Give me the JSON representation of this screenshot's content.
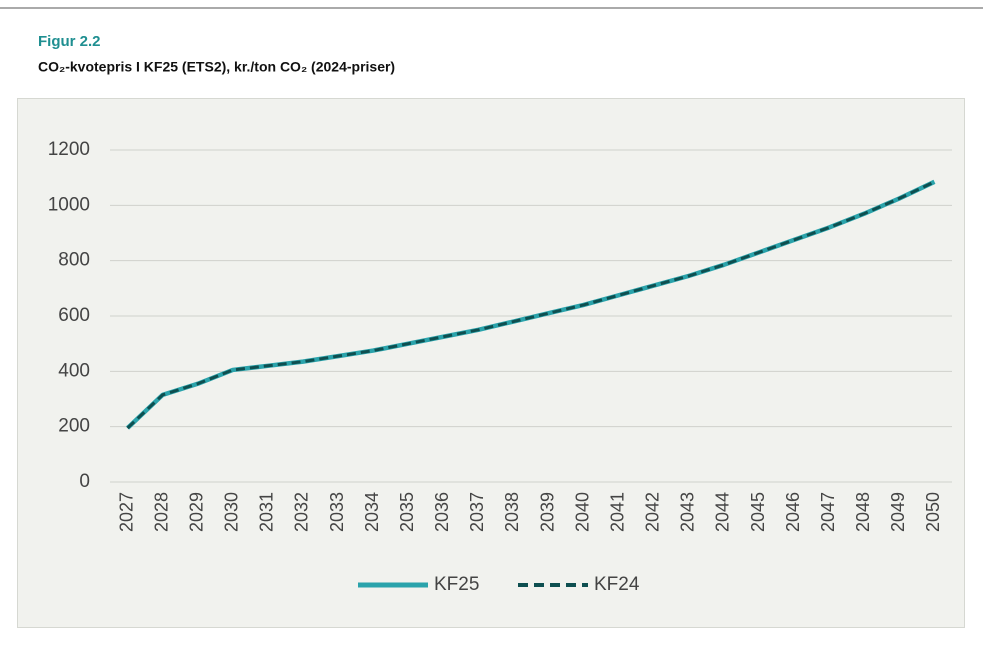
{
  "chart_data": {
    "type": "line",
    "title": "Figur 2.2",
    "subtitle": "CO₂-kvotepris I KF25 (ETS2), kr./ton CO₂ (2024-priser)",
    "categories": [
      "2027",
      "2028",
      "2029",
      "2030",
      "2031",
      "2032",
      "2033",
      "2034",
      "2035",
      "2036",
      "2037",
      "2038",
      "2039",
      "2040",
      "2041",
      "2042",
      "2043",
      "2044",
      "2045",
      "2046",
      "2047",
      "2048",
      "2049",
      "2050"
    ],
    "series": [
      {
        "name": "KF25",
        "color": "#2aa3ab",
        "dash": false,
        "values": [
          195,
          315,
          355,
          405,
          420,
          435,
          455,
          475,
          500,
          525,
          550,
          580,
          610,
          640,
          675,
          710,
          745,
          785,
          830,
          875,
          920,
          970,
          1025,
          1085
        ]
      },
      {
        "name": "KF24",
        "color": "#0e4f50",
        "dash": true,
        "values": [
          195,
          315,
          355,
          405,
          420,
          435,
          455,
          475,
          500,
          525,
          550,
          580,
          610,
          640,
          675,
          710,
          745,
          785,
          830,
          875,
          920,
          970,
          1025,
          1085
        ]
      }
    ],
    "ylim": [
      0,
      1200
    ],
    "yticks": [
      0,
      200,
      400,
      600,
      800,
      1000,
      1200
    ],
    "grid": true,
    "legend": "bottom"
  }
}
